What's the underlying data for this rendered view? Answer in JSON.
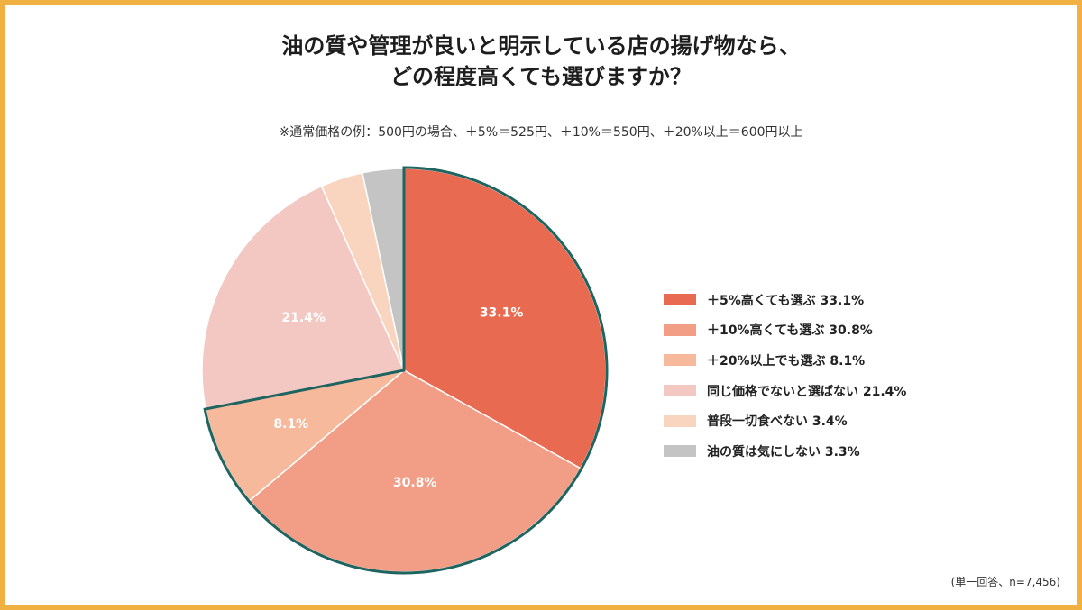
{
  "title_line1": "油の質や管理が良いと明示している店の揚げ物なら、",
  "title_line2": "どの程度高くても選びますか？",
  "subtitle": "※通常価格の例：500円の場合、＋5%＝525円、＋10%＝550円、＋20%以上＝600円以上",
  "note": "(単一回答、n=7,456)",
  "frame_color": "#f0b142",
  "highlight_color": "#1e6460",
  "chart_data": {
    "type": "pie",
    "unit": "%",
    "legend_position": "right",
    "highlighted_group": [
      "＋5%高くても選ぶ",
      "＋10%高くても選ぶ",
      "＋20%以上でも選ぶ"
    ],
    "slices": [
      {
        "label": "＋5%高くても選ぶ",
        "legend": "＋5%高くても選ぶ 33.1%",
        "value": 33.1,
        "data_label": "33.1%",
        "color": "#e86a51"
      },
      {
        "label": "＋10%高くても選ぶ",
        "legend": "＋10%高くても選ぶ 30.8%",
        "value": 30.8,
        "data_label": "30.8%",
        "color": "#f29e86"
      },
      {
        "label": "＋20%以上でも選ぶ",
        "legend": "＋20%以上でも選ぶ 8.1%",
        "value": 8.1,
        "data_label": "8.1%",
        "color": "#f6b99c"
      },
      {
        "label": "同じ価格でないと選ばない",
        "legend": "同じ価格でないと選ばない 21.4%",
        "value": 21.4,
        "data_label": "21.4%",
        "color": "#f4c8c2"
      },
      {
        "label": "普段一切食べない",
        "legend": "普段一切食べない 3.4%",
        "value": 3.4,
        "data_label": "",
        "color": "#f9d5bf"
      },
      {
        "label": "油の質は気にしない",
        "legend": "油の質は気にしない 3.3%",
        "value": 3.3,
        "data_label": "",
        "color": "#c4c4c4"
      }
    ]
  }
}
